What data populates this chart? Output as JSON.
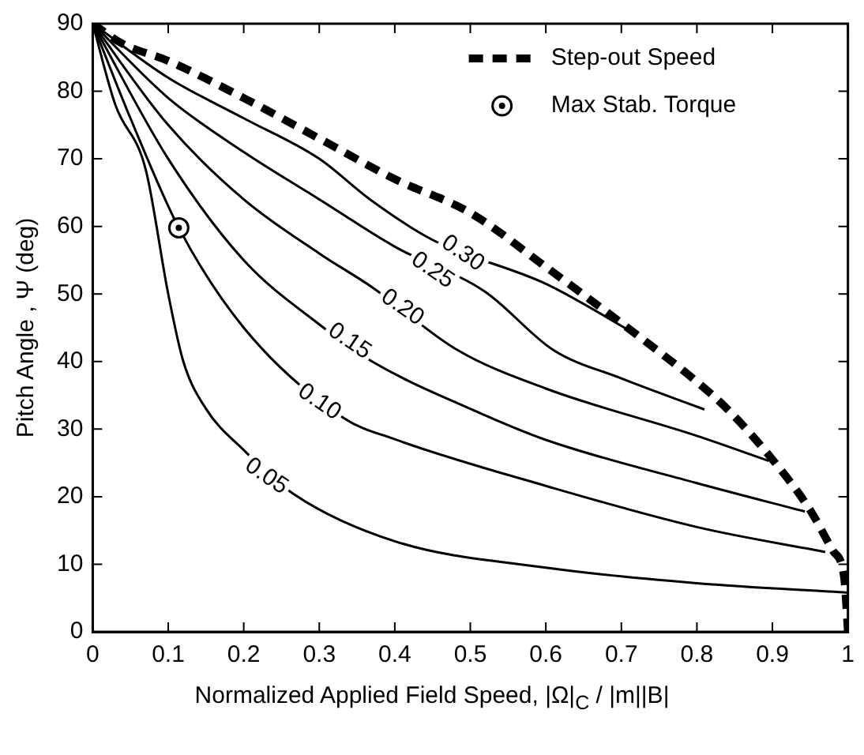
{
  "chart_data": {
    "type": "line",
    "xlabel": "Normalized Applied Field Speed, |Ω|$_{C}$ / |m||B|",
    "ylabel": "Pitch Angle , Ψ (deg)",
    "xlim": [
      0,
      1
    ],
    "ylim": [
      0,
      90
    ],
    "xticks": [
      0,
      0.1,
      0.2,
      0.3,
      0.4,
      0.5,
      0.6,
      0.7,
      0.8,
      0.9,
      1
    ],
    "yticks": [
      0,
      10,
      20,
      30,
      40,
      50,
      60,
      70,
      80,
      90
    ],
    "grid": false,
    "legend": "top right",
    "marker": "none",
    "series": [
      {
        "name": "Step-out Speed",
        "color": "#000000",
        "line_style": "dashed",
        "x": [
          0,
          0.04,
          0.1,
          0.2,
          0.3,
          0.4,
          0.5,
          0.6,
          0.72,
          0.8,
          0.84,
          0.9,
          0.95,
          0.98,
          0.995,
          1
        ],
        "values": [
          90,
          87,
          84.5,
          79,
          73,
          67,
          62,
          54,
          44,
          37,
          33,
          25.5,
          18,
          12,
          8,
          0
        ]
      },
      {
        "name": "Max Stab. Torque",
        "type": "scatter",
        "marker": "circle",
        "color": "#000000",
        "x": [
          0.114
        ],
        "values": [
          59.8
        ]
      },
      {
        "color": "#000000",
        "x": [
          0,
          0.03,
          0.07,
          0.1,
          0.12,
          0.15,
          0.2,
          0.266,
          0.4,
          0.6,
          0.8,
          1
        ],
        "values": [
          90,
          78,
          68.5,
          50,
          40,
          33,
          26.9,
          20.4,
          13.4,
          9.5,
          7.2,
          5.8
        ]
      },
      {
        "color": "#000000",
        "x": [
          0,
          0.05,
          0.114,
          0.2,
          0.333,
          0.4,
          0.6,
          0.8,
          0.97
        ],
        "values": [
          90,
          76,
          59.8,
          45,
          31.6,
          28.5,
          21.6,
          15.5,
          11.8
        ]
      },
      {
        "color": "#000000",
        "x": [
          0,
          0.1,
          0.2,
          0.3,
          0.37,
          0.5,
          0.6,
          0.8,
          0.943
        ],
        "values": [
          90,
          70,
          55,
          45.5,
          40,
          33,
          28.4,
          22,
          17.8
        ]
      },
      {
        "color": "#000000",
        "x": [
          0,
          0.1,
          0.2,
          0.3,
          0.37,
          0.483,
          0.6,
          0.8,
          0.895
        ],
        "values": [
          90,
          75,
          64,
          56,
          51,
          41.7,
          36,
          29,
          25.3
        ]
      },
      {
        "color": "#000000",
        "x": [
          0,
          0.1,
          0.2,
          0.3,
          0.4,
          0.52,
          0.61,
          0.7,
          0.81
        ],
        "values": [
          90,
          79,
          71,
          64,
          57,
          50.3,
          41.7,
          37.5,
          32.9
        ]
      },
      {
        "color": "#000000",
        "x": [
          0,
          0.1,
          0.2,
          0.3,
          0.367,
          0.45,
          0.6,
          0.72
        ],
        "values": [
          90,
          82,
          76,
          70,
          64,
          58,
          51.5,
          44
        ]
      }
    ],
    "annotations": [
      {
        "text": "0.05",
        "x": 0.23,
        "y": 23
      },
      {
        "text": "0.10",
        "x": 0.3,
        "y": 34
      },
      {
        "text": "0.15",
        "x": 0.34,
        "y": 43
      },
      {
        "text": "0.20",
        "x": 0.41,
        "y": 48
      },
      {
        "text": "0.25",
        "x": 0.45,
        "y": 53.5
      },
      {
        "text": "0.30",
        "x": 0.49,
        "y": 56
      }
    ]
  }
}
